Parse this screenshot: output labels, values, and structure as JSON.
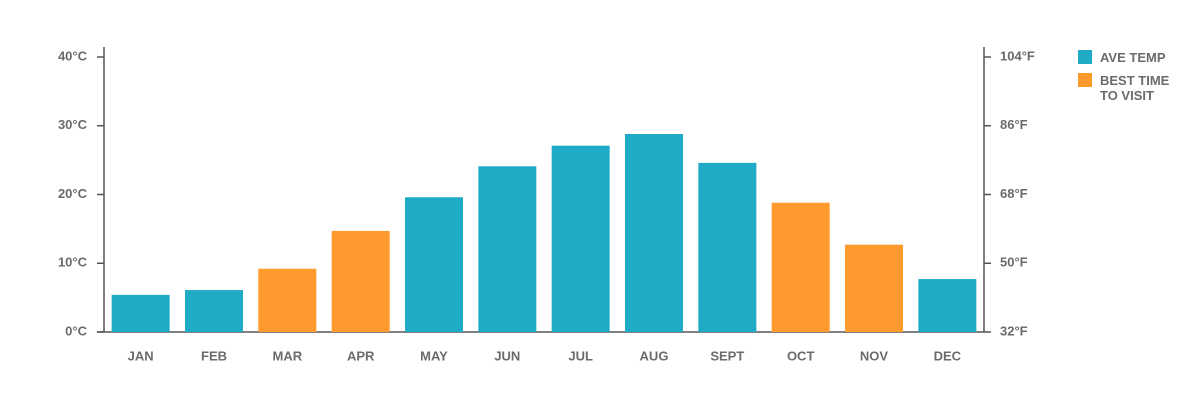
{
  "chart_data": {
    "type": "bar",
    "categories": [
      "JAN",
      "FEB",
      "MAR",
      "APR",
      "MAY",
      "JUN",
      "JUL",
      "AUG",
      "SEPT",
      "OCT",
      "NOV",
      "DEC"
    ],
    "series": [
      {
        "name": "AVE TEMP",
        "color": "#1faac5",
        "values": [
          5.4,
          6.1,
          null,
          null,
          19.6,
          24.1,
          27.1,
          28.8,
          24.6,
          null,
          null,
          7.7
        ]
      },
      {
        "name": "BEST TIME TO VISIT",
        "color": "#fe9a2e",
        "values": [
          null,
          null,
          9.2,
          14.7,
          null,
          null,
          null,
          null,
          null,
          18.8,
          12.7,
          null
        ]
      }
    ],
    "ylim": [
      0,
      40
    ],
    "yticks": [
      {
        "value": 0,
        "label": "0°C"
      },
      {
        "value": 10,
        "label": "10°C"
      },
      {
        "value": 20,
        "label": "20°C"
      },
      {
        "value": 30,
        "label": "30°C"
      },
      {
        "value": 40,
        "label": "40°C"
      }
    ],
    "y2lim": [
      32,
      104
    ],
    "y2ticks": [
      {
        "value": 32,
        "label": "32°F"
      },
      {
        "value": 50,
        "label": "50°F"
      },
      {
        "value": 68,
        "label": "68°F"
      },
      {
        "value": 86,
        "label": "86°F"
      },
      {
        "value": 104,
        "label": "104°F"
      }
    ],
    "legend": "right"
  }
}
